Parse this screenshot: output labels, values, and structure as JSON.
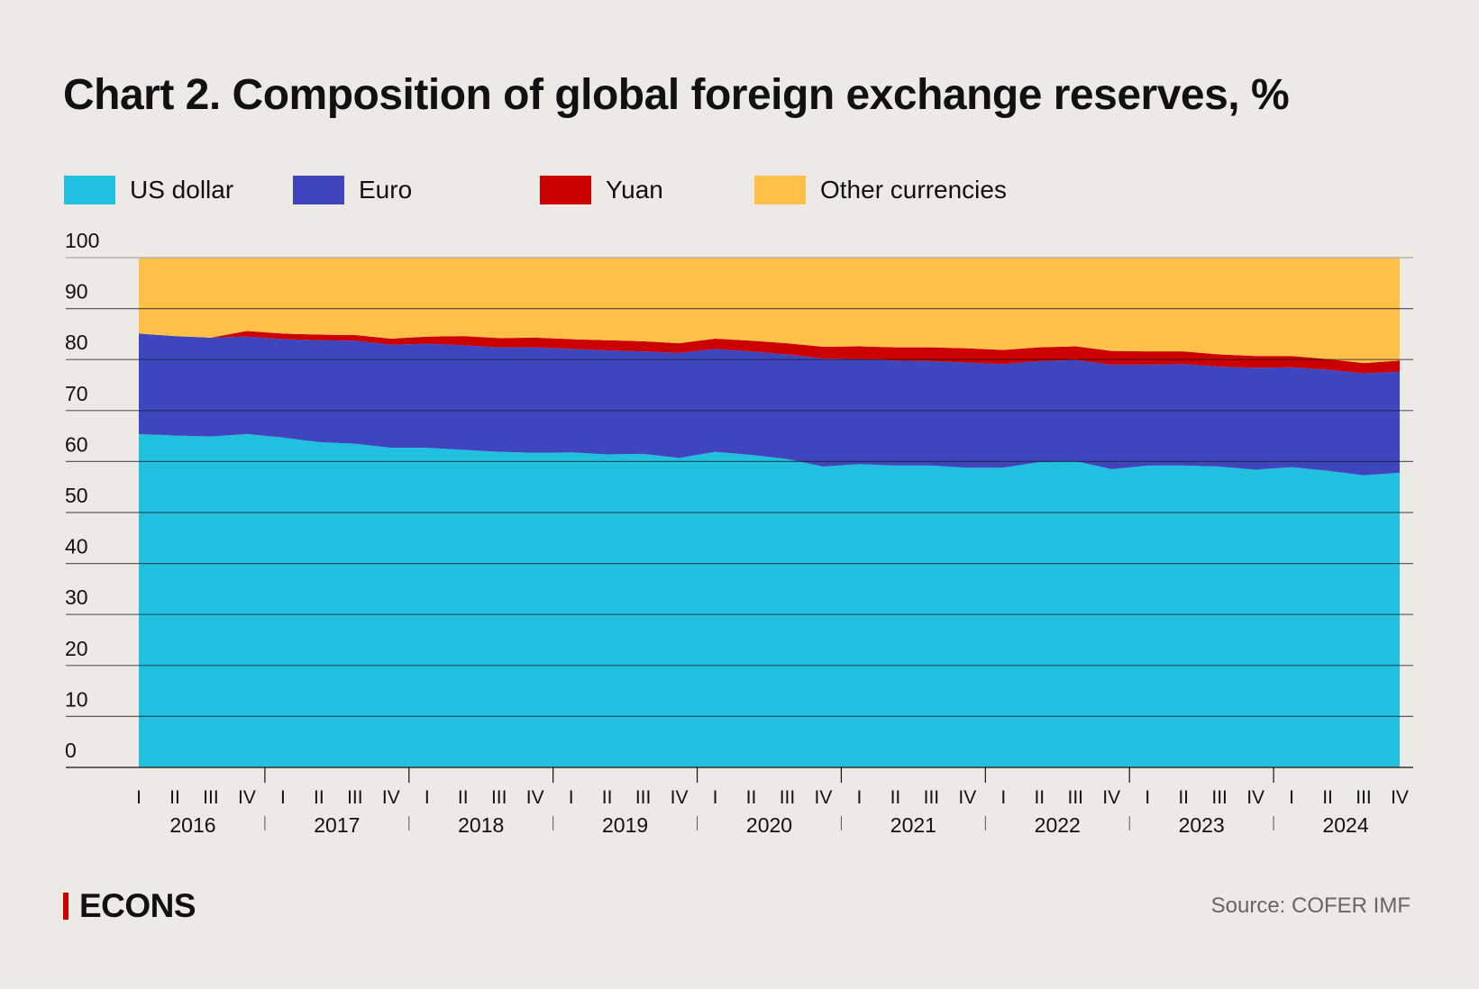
{
  "chart_data": {
    "type": "area",
    "stacked": true,
    "title": "Chart 2. Composition of global foreign exchange reserves, %",
    "ylim": [
      0,
      100
    ],
    "yticks": [
      0,
      10,
      20,
      30,
      40,
      50,
      60,
      70,
      80,
      90,
      100
    ],
    "grid": true,
    "legend_position": "top",
    "quarter_labels": [
      "I",
      "II",
      "III",
      "IV"
    ],
    "years": [
      "2016",
      "2017",
      "2018",
      "2019",
      "2020",
      "2021",
      "2022",
      "2023",
      "2024"
    ],
    "series": [
      {
        "name": "US dollar",
        "color": "#21C0DF",
        "values": [
          65.4,
          65.1,
          64.9,
          65.4,
          64.7,
          63.8,
          63.5,
          62.7,
          62.7,
          62.3,
          61.9,
          61.7,
          61.8,
          61.4,
          61.5,
          60.7,
          61.9,
          61.3,
          60.5,
          59.0,
          59.5,
          59.2,
          59.2,
          58.8,
          58.8,
          59.9,
          60.1,
          58.5,
          59.2,
          59.2,
          59.0,
          58.4,
          58.9,
          58.2,
          57.3,
          57.8
        ]
      },
      {
        "name": "Euro",
        "color": "#3F46BD",
        "values": [
          19.7,
          19.5,
          19.4,
          19.1,
          19.3,
          20.0,
          20.2,
          20.2,
          20.4,
          20.5,
          20.5,
          20.7,
          20.3,
          20.4,
          20.1,
          20.6,
          20.2,
          20.3,
          20.5,
          21.2,
          20.6,
          20.6,
          20.5,
          20.6,
          20.3,
          19.8,
          19.8,
          20.5,
          19.8,
          19.9,
          19.6,
          20.0,
          19.6,
          19.8,
          20.0,
          19.8
        ]
      },
      {
        "name": "Yuan",
        "color": "#CC0000",
        "values": [
          0,
          0,
          0,
          1.1,
          1.1,
          1.1,
          1.1,
          1.2,
          1.4,
          1.8,
          1.8,
          1.9,
          1.9,
          2.0,
          2.0,
          1.9,
          2.0,
          2.1,
          2.2,
          2.3,
          2.5,
          2.6,
          2.7,
          2.8,
          2.8,
          2.7,
          2.7,
          2.7,
          2.6,
          2.5,
          2.4,
          2.3,
          2.2,
          2.1,
          2.0,
          2.2
        ]
      },
      {
        "name": "Other currencies",
        "color": "#FFC04A",
        "values": [
          14.9,
          15.4,
          15.7,
          14.4,
          14.9,
          15.1,
          15.2,
          15.9,
          15.5,
          15.4,
          15.8,
          15.7,
          16.0,
          16.2,
          16.4,
          16.8,
          15.9,
          16.3,
          16.8,
          17.5,
          17.4,
          17.6,
          17.6,
          17.8,
          18.1,
          17.6,
          17.4,
          18.3,
          18.4,
          18.4,
          19.0,
          19.3,
          19.3,
          19.9,
          20.7,
          20.2
        ]
      }
    ]
  },
  "footer": {
    "logo": "ECONS",
    "source": "Source: COFER IMF"
  }
}
